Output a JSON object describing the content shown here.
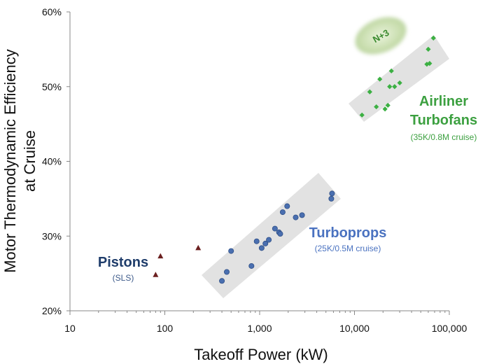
{
  "chart_data": {
    "type": "scatter",
    "xlabel": "Takeoff Power (kW)",
    "ylabel_lines": [
      "Motor Thermodynamic Efficiency",
      "at Cruise"
    ],
    "x_scale": "log",
    "xlim": [
      10,
      100000
    ],
    "ylim": [
      20,
      60
    ],
    "x_ticks": [
      10,
      100,
      1000,
      10000,
      100000
    ],
    "x_tick_labels": [
      "10",
      "100",
      "1,000",
      "10,000",
      "100,000"
    ],
    "y_ticks": [
      20,
      30,
      40,
      50,
      60
    ],
    "y_tick_labels": [
      "20%",
      "30%",
      "40%",
      "50%",
      "60%"
    ],
    "grid": false,
    "series": [
      {
        "name": "Pistons",
        "subtitle": "(SLS)",
        "marker": "triangle",
        "color": "#6b1f1f",
        "label_color": "#1f3d6b",
        "points": [
          [
            80,
            24.8
          ],
          [
            90,
            27.3
          ],
          [
            225,
            28.4
          ]
        ]
      },
      {
        "name": "Turboprops",
        "subtitle": "(25K/0.5M cruise)",
        "marker": "circle",
        "color": "#4a6fb0",
        "label_color": "#4a72c0",
        "points": [
          [
            400,
            24.0
          ],
          [
            450,
            25.2
          ],
          [
            500,
            28.0
          ],
          [
            820,
            26.0
          ],
          [
            930,
            29.3
          ],
          [
            1050,
            28.4
          ],
          [
            1150,
            29.0
          ],
          [
            1250,
            29.5
          ],
          [
            1450,
            31.0
          ],
          [
            1600,
            30.5
          ],
          [
            1650,
            30.3
          ],
          [
            1750,
            33.2
          ],
          [
            1950,
            34.0
          ],
          [
            2400,
            32.5
          ],
          [
            2800,
            32.8
          ],
          [
            5700,
            35.0
          ],
          [
            5800,
            35.7
          ]
        ]
      },
      {
        "name_lines": [
          "Airliner",
          "Turbofans"
        ],
        "subtitle": "(35K/0.8M cruise)",
        "marker": "diamond",
        "color": "#3cb043",
        "label_color": "#3ca040",
        "points": [
          [
            12000,
            46.2
          ],
          [
            14500,
            49.3
          ],
          [
            17000,
            47.3
          ],
          [
            18500,
            51.0
          ],
          [
            21000,
            47.0
          ],
          [
            22500,
            47.5
          ],
          [
            23500,
            50.0
          ],
          [
            24500,
            52.1
          ],
          [
            26500,
            50.0
          ],
          [
            30000,
            50.5
          ],
          [
            58000,
            53.0
          ],
          [
            60000,
            55.0
          ],
          [
            62000,
            53.1
          ],
          [
            68000,
            56.5
          ]
        ]
      }
    ],
    "annotation": {
      "text": "N+3",
      "x": 32000,
      "y": 57.0,
      "color": "#3a8a2e"
    }
  }
}
